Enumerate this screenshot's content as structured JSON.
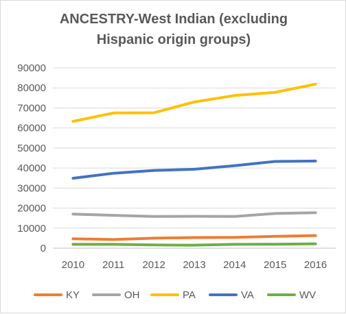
{
  "chart_data": {
    "type": "line",
    "title_lines": [
      "ANCESTRY-West Indian (excluding",
      "Hispanic origin groups)"
    ],
    "xlabel": "",
    "ylabel": "",
    "categories": [
      "2010",
      "2011",
      "2012",
      "2013",
      "2014",
      "2015",
      "2016"
    ],
    "ylim": [
      0,
      90000
    ],
    "yticks": [
      0,
      10000,
      20000,
      30000,
      40000,
      50000,
      60000,
      70000,
      80000,
      90000
    ],
    "grid": true,
    "legend_position": "bottom",
    "series": [
      {
        "name": "KY",
        "color": "#ed7d31",
        "values": [
          4700,
          4300,
          5000,
          5300,
          5400,
          5900,
          6300
        ]
      },
      {
        "name": "OH",
        "color": "#a5a5a5",
        "values": [
          17000,
          16400,
          15800,
          15900,
          15800,
          17300,
          17700
        ]
      },
      {
        "name": "PA",
        "color": "#ffc000",
        "values": [
          63300,
          67500,
          67600,
          73000,
          76200,
          77800,
          81900
        ]
      },
      {
        "name": "VA",
        "color": "#4472c4",
        "values": [
          34900,
          37400,
          38800,
          39400,
          41200,
          43300,
          43500
        ]
      },
      {
        "name": "WV",
        "color": "#70ad47",
        "values": [
          1900,
          1900,
          1600,
          1500,
          1900,
          2000,
          2200
        ]
      }
    ]
  }
}
